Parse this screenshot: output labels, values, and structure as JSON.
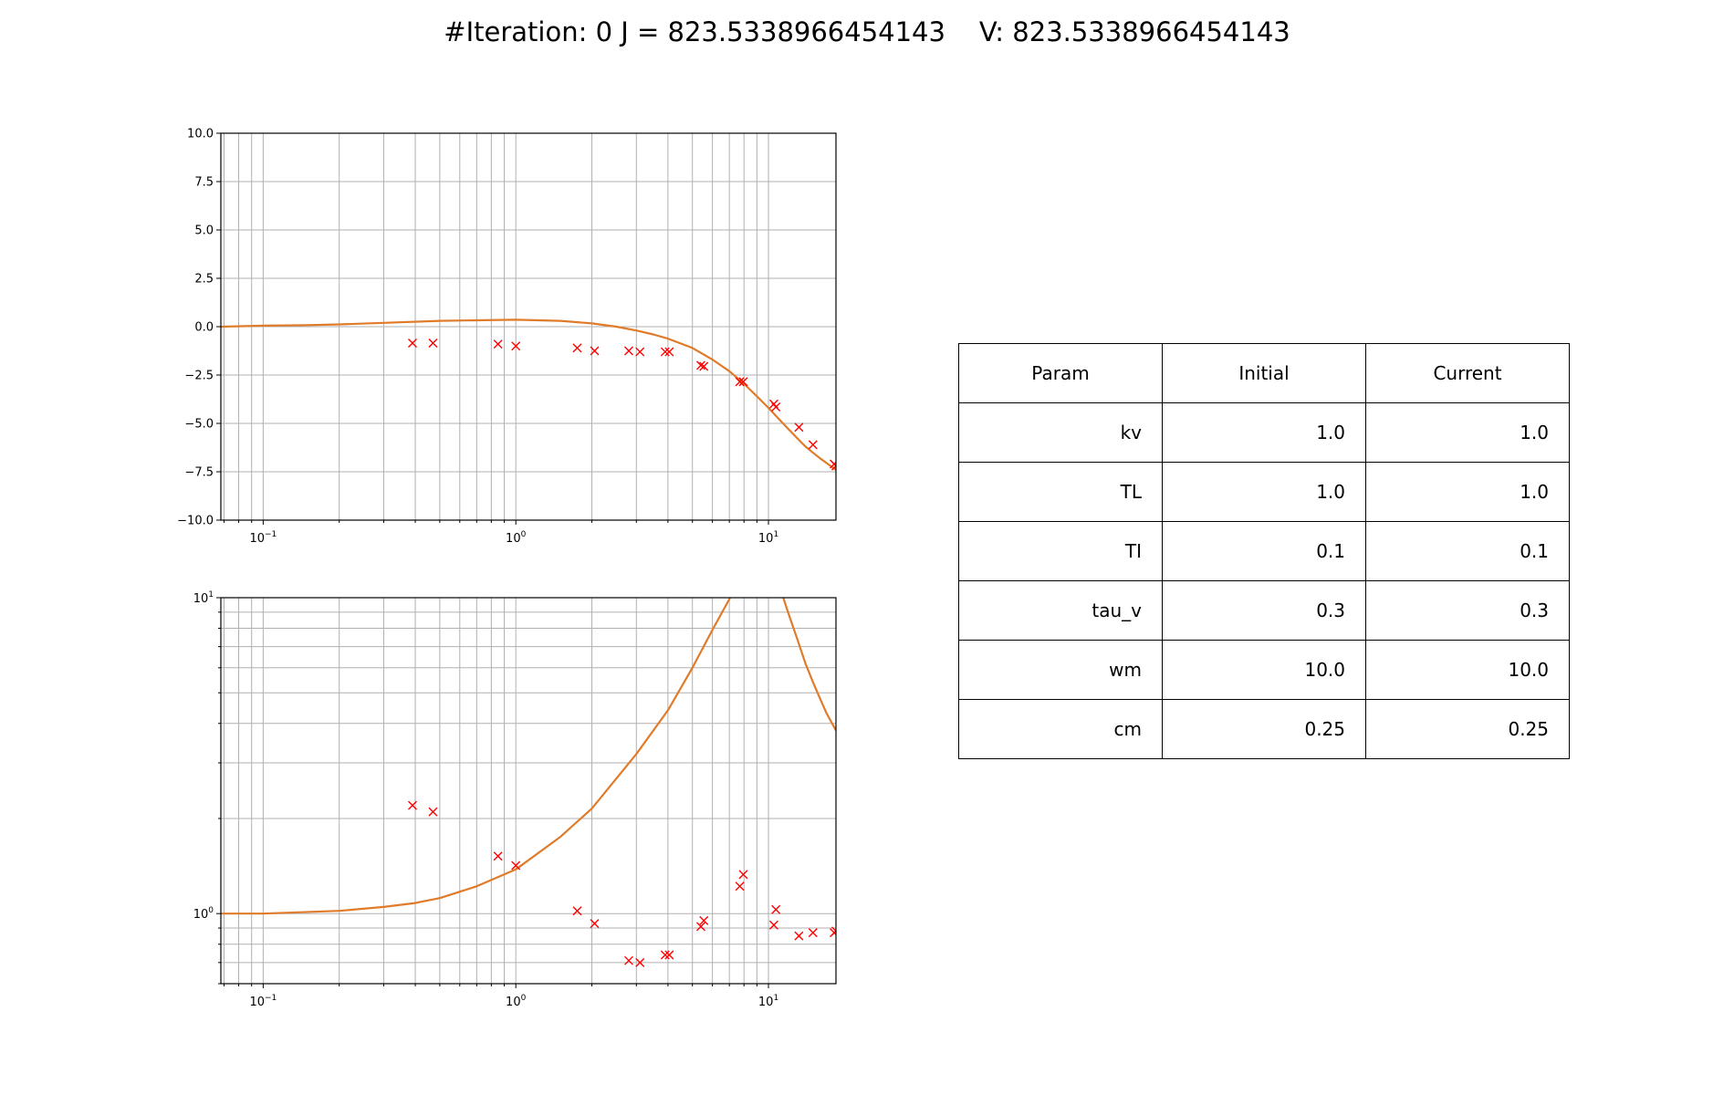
{
  "header": {
    "iteration_text": "#Iteration: 0 J = 823.5338966454143",
    "v_text": "V: 823.5338966454143"
  },
  "colors": {
    "curve": "#e07b2a",
    "markers": "#ff0000",
    "grid": "#b0b0b0",
    "axes": "#000000"
  },
  "chart_data": [
    {
      "type": "line",
      "x_scale": "log",
      "y_scale": "linear",
      "xlim": [
        0.068,
        18.5
      ],
      "ylim": [
        -10.0,
        10.0
      ],
      "grid": true,
      "y_ticks": [
        "10.0",
        "7.5",
        "5.0",
        "2.5",
        "0.0",
        "−2.5",
        "−5.0",
        "−7.5",
        "−10.0"
      ],
      "y_tick_values": [
        10.0,
        7.5,
        5.0,
        2.5,
        0.0,
        -2.5,
        -5.0,
        -7.5,
        -10.0
      ],
      "x_tick_values": [
        0.1,
        1,
        10
      ],
      "x_tick_bases": [
        "10",
        "10",
        "10"
      ],
      "x_tick_exps": [
        "−1",
        "0",
        "1"
      ],
      "series": [
        {
          "kind": "line",
          "x": [
            0.068,
            0.1,
            0.15,
            0.2,
            0.3,
            0.5,
            0.7,
            1.0,
            1.5,
            2.0,
            2.5,
            3.0,
            3.5,
            4.0,
            5.0,
            6.0,
            7.0,
            8.0,
            9.0,
            10.0,
            12.0,
            14.0,
            16.0,
            18.5
          ],
          "y": [
            0.0,
            0.05,
            0.08,
            0.12,
            0.2,
            0.3,
            0.33,
            0.36,
            0.3,
            0.17,
            0.0,
            -0.2,
            -0.4,
            -0.62,
            -1.1,
            -1.7,
            -2.3,
            -2.95,
            -3.6,
            -4.2,
            -5.3,
            -6.2,
            -6.8,
            -7.4
          ]
        },
        {
          "kind": "scatter",
          "marker": "x",
          "x": [
            0.39,
            0.47,
            0.85,
            1.0,
            1.75,
            2.05,
            2.8,
            3.1,
            3.9,
            4.05,
            5.4,
            5.55,
            7.7,
            7.95,
            10.5,
            10.7,
            13.2,
            15.0,
            18.2,
            18.5
          ],
          "y": [
            -0.85,
            -0.85,
            -0.9,
            -1.0,
            -1.1,
            -1.25,
            -1.25,
            -1.3,
            -1.3,
            -1.3,
            -2.0,
            -2.05,
            -2.85,
            -2.85,
            -4.0,
            -4.15,
            -5.2,
            -6.1,
            -7.1,
            -7.2
          ]
        }
      ]
    },
    {
      "type": "line",
      "x_scale": "log",
      "y_scale": "log",
      "xlim": [
        0.068,
        18.5
      ],
      "ylim": [
        0.6,
        10.0
      ],
      "grid": true,
      "y_tick_values": [
        10,
        1
      ],
      "y_tick_bases": [
        "10",
        "10"
      ],
      "y_tick_exps": [
        "1",
        "0"
      ],
      "x_tick_values": [
        0.1,
        1,
        10
      ],
      "x_tick_bases": [
        "10",
        "10",
        "10"
      ],
      "x_tick_exps": [
        "−1",
        "0",
        "1"
      ],
      "series": [
        {
          "kind": "line",
          "x": [
            0.068,
            0.1,
            0.2,
            0.3,
            0.4,
            0.5,
            0.7,
            1.0,
            1.5,
            2.0,
            3.0,
            4.0,
            5.0,
            6.0,
            7.0,
            7.5
          ],
          "y": [
            1.0,
            1.0,
            1.02,
            1.05,
            1.08,
            1.12,
            1.22,
            1.38,
            1.75,
            2.15,
            3.2,
            4.4,
            6.0,
            7.9,
            9.9,
            11.0
          ]
        },
        {
          "kind": "line",
          "x": [
            11.0,
            12.0,
            13.0,
            14.0,
            15.0,
            16.0,
            17.0,
            18.5
          ],
          "y": [
            11.0,
            8.9,
            7.4,
            6.2,
            5.4,
            4.8,
            4.3,
            3.8
          ]
        },
        {
          "kind": "scatter",
          "marker": "x",
          "x": [
            0.39,
            0.47,
            0.85,
            1.0,
            1.75,
            2.05,
            2.8,
            3.1,
            3.9,
            4.05,
            5.4,
            5.55,
            7.7,
            7.95,
            10.5,
            10.7,
            13.2,
            15.0,
            18.2,
            18.5
          ],
          "y": [
            2.2,
            2.1,
            1.52,
            1.42,
            1.02,
            0.93,
            0.71,
            0.7,
            0.74,
            0.74,
            0.91,
            0.95,
            1.22,
            1.33,
            0.92,
            1.03,
            0.85,
            0.87,
            0.87,
            0.88
          ]
        }
      ]
    }
  ],
  "table": {
    "headers": [
      "Param",
      "Initial",
      "Current"
    ],
    "rows": [
      [
        "kv",
        "1.0",
        "1.0"
      ],
      [
        "TL",
        "1.0",
        "1.0"
      ],
      [
        "TI",
        "0.1",
        "0.1"
      ],
      [
        "tau_v",
        "0.3",
        "0.3"
      ],
      [
        "wm",
        "10.0",
        "10.0"
      ],
      [
        "cm",
        "0.25",
        "0.25"
      ]
    ]
  }
}
